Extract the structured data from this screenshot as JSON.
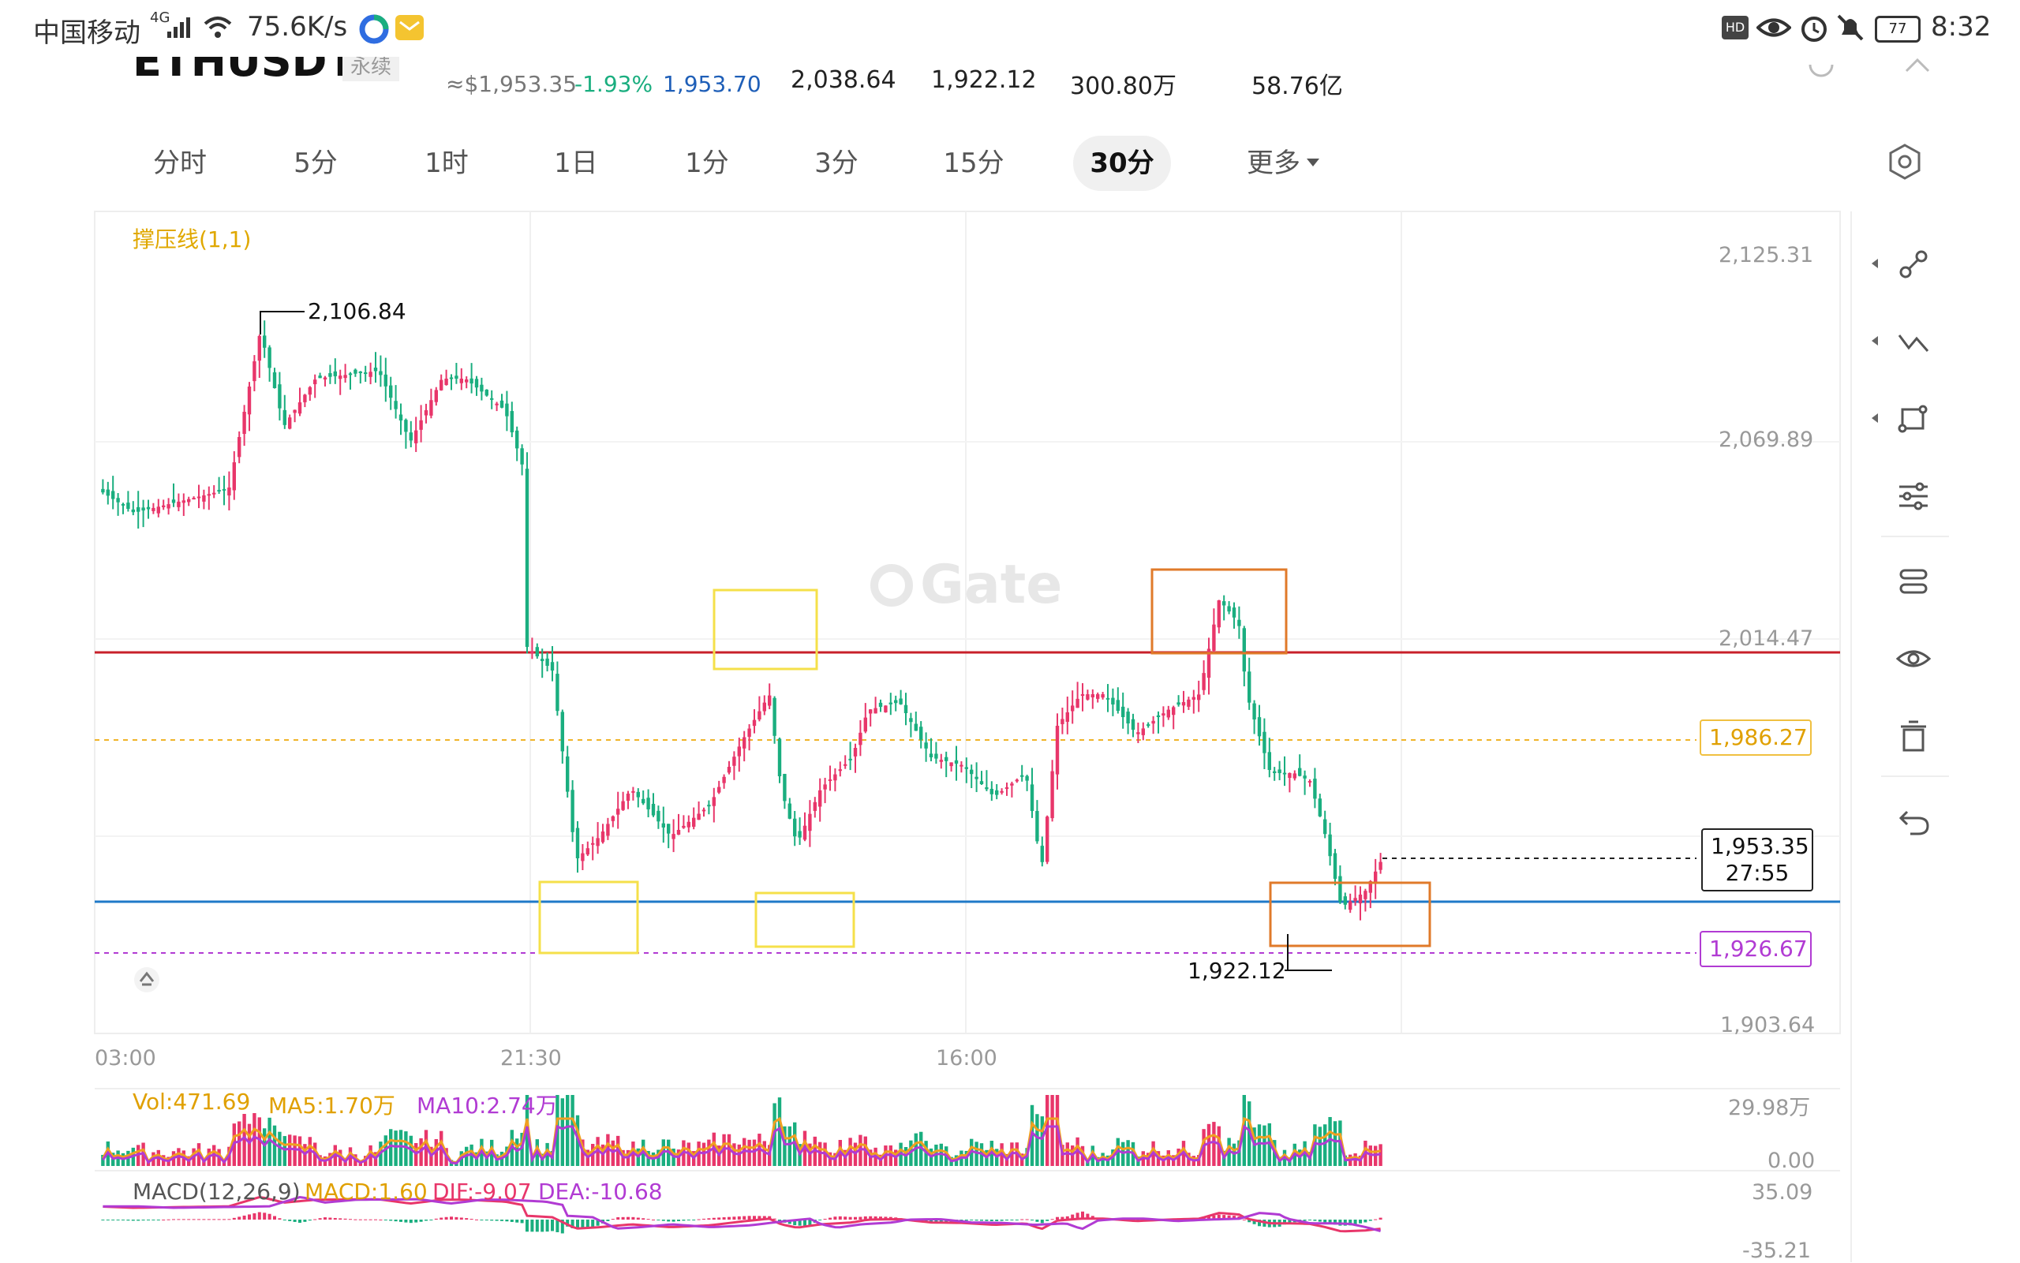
{
  "status_bar": {
    "carrier": "中国移动",
    "network": "4G",
    "speed": "75.6K/s",
    "hd": "HD",
    "battery": "77",
    "time": "8:32"
  },
  "header": {
    "symbol": "ETHUSDT",
    "badge": "永续",
    "usd_price": "≈$1,953.35",
    "change_pct": "-1.93%",
    "mark_price": "1,953.70",
    "high": "2,038.64",
    "low": "1,922.12",
    "volume": "300.80万",
    "turnover": "58.76亿"
  },
  "tabs": [
    "分时",
    "5分",
    "1时",
    "1日",
    "1分",
    "3分",
    "15分",
    "30分",
    "更多"
  ],
  "active_tab": "30分",
  "chart": {
    "indicator_label": "撑压线(1,1)",
    "watermark": "Gate",
    "y_ticks": [
      "2,125.31",
      "2,069.89",
      "2,014.47",
      "1,903.64"
    ],
    "x_ticks": [
      "03:00",
      "21:30",
      "16:00"
    ],
    "high_marker": "2,106.84",
    "low_marker": "1,922.12",
    "resistance_label": "1,986.27",
    "support_label": "1,926.67",
    "current_price": "1,953.35",
    "countdown": "27:55",
    "colors": {
      "up": "#e8366a",
      "down": "#1aae7f",
      "resistance": "#c8202a",
      "support": "#1f7ac8",
      "yellow_dash": "#f0b429",
      "purple_dash": "#b13bd3"
    }
  },
  "volume_panel": {
    "vol": "Vol:471.69",
    "ma5": "MA5:1.70万",
    "ma10": "MA10:2.74万",
    "max": "29.98万",
    "min": "0.00"
  },
  "macd_panel": {
    "title": "MACD(12,26,9)",
    "macd": "MACD:1.60",
    "dif": "DIF:-9.07",
    "dea": "DEA:-10.68",
    "max": "35.09",
    "min": "-35.21"
  },
  "toolbar": [
    "node-line-icon",
    "zigzag-icon",
    "shape-icon",
    "settings-sliders-icon",
    "layers-icon",
    "eye-icon",
    "trash-icon",
    "undo-icon"
  ]
}
